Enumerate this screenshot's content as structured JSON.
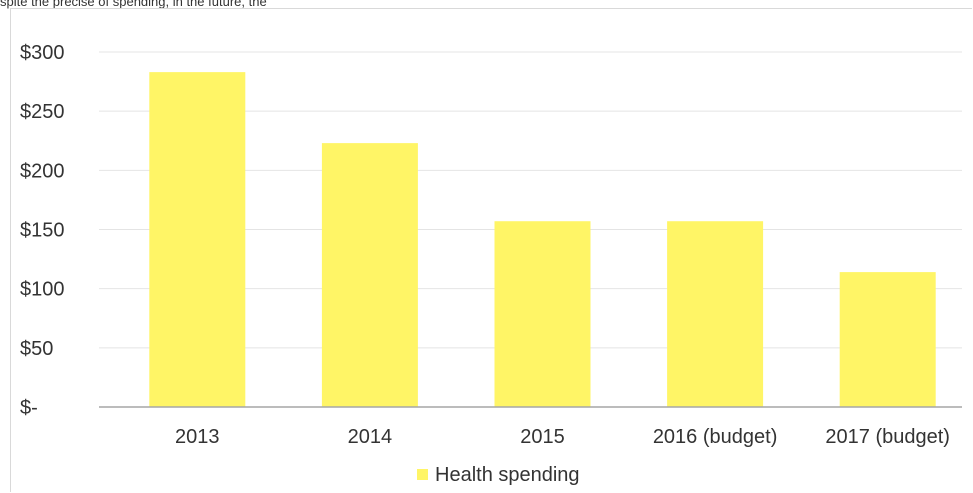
{
  "caption": "spite the precise of spending, in the future, the",
  "colors": {
    "bar": "#fff566",
    "grid": "#e4e4e4",
    "axis": "#a6a6a6",
    "text": "#333333"
  },
  "chart_data": {
    "type": "bar",
    "title": "",
    "xlabel": "",
    "ylabel": "",
    "categories": [
      "2013",
      "2014",
      "2015",
      "2016 (budget)",
      "2017 (budget)"
    ],
    "series": [
      {
        "name": "Health spending",
        "values": [
          283,
          223,
          157,
          157,
          114
        ]
      }
    ],
    "ylim": [
      0,
      300
    ],
    "yticks": [
      0,
      50,
      100,
      150,
      200,
      250,
      300
    ],
    "ytick_labels": [
      "$-",
      "$50",
      "$100",
      "$150",
      "$200",
      "$250",
      "$300"
    ],
    "grid": true,
    "legend_position": "bottom"
  }
}
